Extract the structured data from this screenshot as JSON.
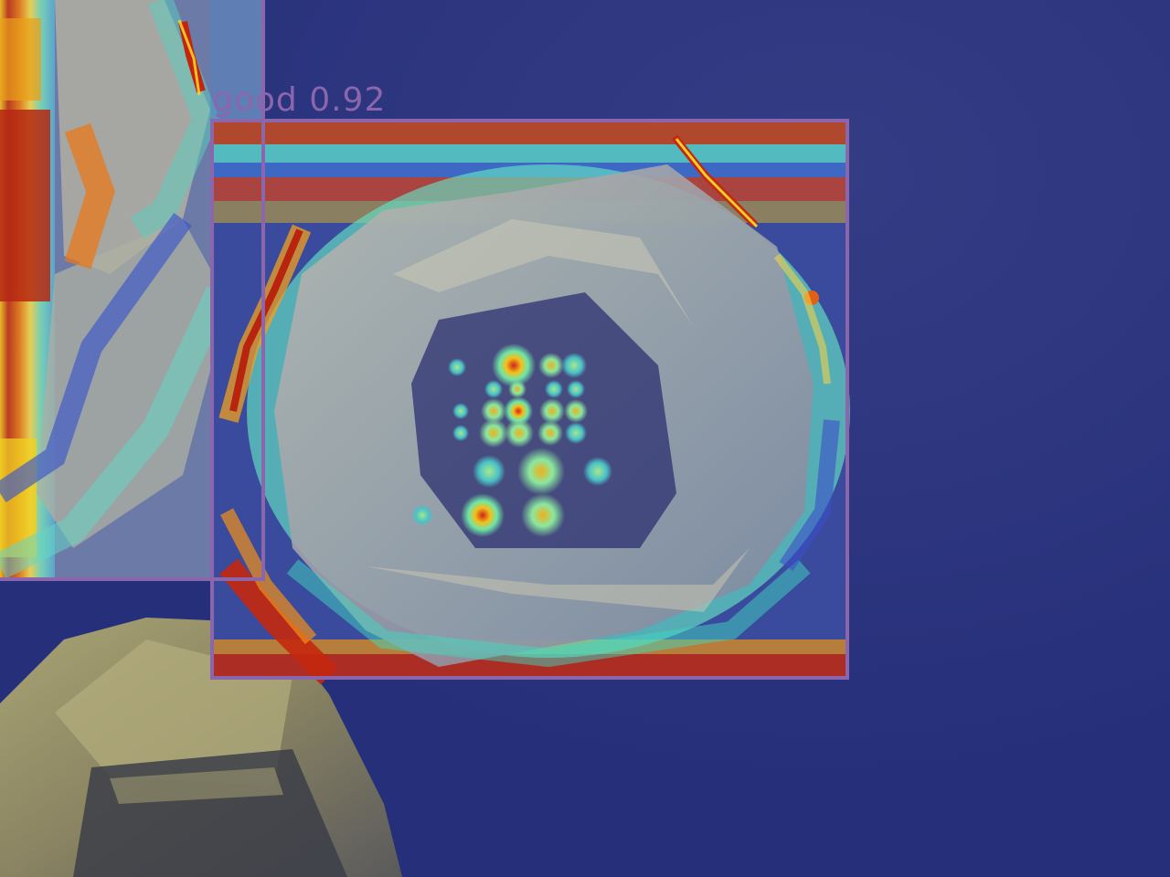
{
  "image": {
    "subject": "crystal-with-heatmap-overlay",
    "background_color": "#26307a",
    "box_color": "#8c66ad",
    "label_color": "#8c66ad"
  },
  "detections": [
    {
      "label": "good 0.92",
      "class": "good",
      "score": 0.92
    },
    {
      "label": "",
      "class": "",
      "score": null
    }
  ]
}
